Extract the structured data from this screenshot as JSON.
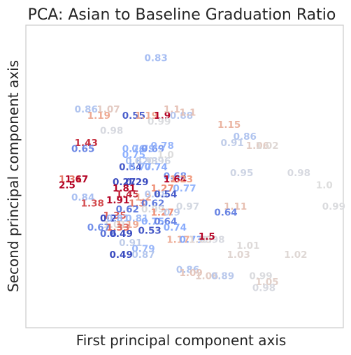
{
  "chart_data": {
    "type": "scatter",
    "title": "PCA: Asian to Baseline Graduation Ratio",
    "xlabel": "First principal component axis",
    "ylabel": "Second principal component axis",
    "xlim": [
      0,
      100
    ],
    "ylim": [
      0,
      100
    ],
    "grid": false,
    "colormap": "coolwarm",
    "color_range": [
      0.5,
      1.5
    ],
    "points": [
      {
        "x": 41,
        "y": 89,
        "label": "0.83"
      },
      {
        "x": 19,
        "y": 72,
        "label": "0.86"
      },
      {
        "x": 26,
        "y": 72,
        "label": "1.07"
      },
      {
        "x": 23,
        "y": 70,
        "label": "1.19"
      },
      {
        "x": 34,
        "y": 70,
        "label": "0.55"
      },
      {
        "x": 38,
        "y": 70,
        "label": "1.19"
      },
      {
        "x": 43,
        "y": 70,
        "label": "1.9"
      },
      {
        "x": 42,
        "y": 68,
        "label": "0.99"
      },
      {
        "x": 46,
        "y": 72,
        "label": "1.1"
      },
      {
        "x": 49,
        "y": 70,
        "label": "0.88"
      },
      {
        "x": 51,
        "y": 71,
        "label": "1.1"
      },
      {
        "x": 27,
        "y": 65,
        "label": "0.98"
      },
      {
        "x": 64,
        "y": 67,
        "label": "1.15"
      },
      {
        "x": 69,
        "y": 63,
        "label": "0.86"
      },
      {
        "x": 65,
        "y": 61,
        "label": "0.91"
      },
      {
        "x": 73,
        "y": 60,
        "label": "1.06"
      },
      {
        "x": 76,
        "y": 60,
        "label": "1.02"
      },
      {
        "x": 19,
        "y": 61,
        "label": "1.43"
      },
      {
        "x": 18,
        "y": 59,
        "label": "0.65"
      },
      {
        "x": 34,
        "y": 59,
        "label": "0.76"
      },
      {
        "x": 37,
        "y": 59,
        "label": "0.79"
      },
      {
        "x": 40,
        "y": 59,
        "label": "0.69"
      },
      {
        "x": 43,
        "y": 60,
        "label": "0.78"
      },
      {
        "x": 34,
        "y": 57,
        "label": "0.75"
      },
      {
        "x": 44,
        "y": 57,
        "label": "1.0"
      },
      {
        "x": 35,
        "y": 55,
        "label": "0.82"
      },
      {
        "x": 38,
        "y": 55,
        "label": "0.93"
      },
      {
        "x": 42,
        "y": 55,
        "label": "0.96"
      },
      {
        "x": 33,
        "y": 53,
        "label": "0.54"
      },
      {
        "x": 36,
        "y": 53,
        "label": "0.77"
      },
      {
        "x": 41,
        "y": 53,
        "label": "0.74"
      },
      {
        "x": 68,
        "y": 51,
        "label": "0.95"
      },
      {
        "x": 86,
        "y": 51,
        "label": "0.98"
      },
      {
        "x": 14,
        "y": 49,
        "label": "1.31"
      },
      {
        "x": 16,
        "y": 49,
        "label": "1.67"
      },
      {
        "x": 13,
        "y": 47,
        "label": "2.5"
      },
      {
        "x": 31,
        "y": 48,
        "label": "0.27"
      },
      {
        "x": 35,
        "y": 48,
        "label": "0.29"
      },
      {
        "x": 47,
        "y": 50,
        "label": "0.68"
      },
      {
        "x": 47,
        "y": 49,
        "label": "1.64"
      },
      {
        "x": 49,
        "y": 49,
        "label": "1.23"
      },
      {
        "x": 94,
        "y": 47,
        "label": "1.0"
      },
      {
        "x": 31,
        "y": 46,
        "label": "1.81"
      },
      {
        "x": 43,
        "y": 46,
        "label": "1.27"
      },
      {
        "x": 50,
        "y": 46,
        "label": "0.77"
      },
      {
        "x": 32,
        "y": 44,
        "label": "1.45"
      },
      {
        "x": 37,
        "y": 43,
        "label": "1.2"
      },
      {
        "x": 41,
        "y": 44,
        "label": "0.88"
      },
      {
        "x": 44,
        "y": 44,
        "label": "0.54"
      },
      {
        "x": 18,
        "y": 43,
        "label": "0.84"
      },
      {
        "x": 21,
        "y": 41,
        "label": "1.38"
      },
      {
        "x": 29,
        "y": 42,
        "label": "1.91"
      },
      {
        "x": 35,
        "y": 41,
        "label": "1.3"
      },
      {
        "x": 40,
        "y": 41,
        "label": "0.62"
      },
      {
        "x": 51,
        "y": 40,
        "label": "0.97"
      },
      {
        "x": 66,
        "y": 40,
        "label": "1.11"
      },
      {
        "x": 97,
        "y": 40,
        "label": "0.99"
      },
      {
        "x": 32,
        "y": 39,
        "label": "0.62"
      },
      {
        "x": 40,
        "y": 39,
        "label": "0.99"
      },
      {
        "x": 43,
        "y": 38,
        "label": "1.27"
      },
      {
        "x": 46,
        "y": 38,
        "label": "0.9"
      },
      {
        "x": 63,
        "y": 38,
        "label": "0.64"
      },
      {
        "x": 28,
        "y": 37,
        "label": "1.35"
      },
      {
        "x": 26,
        "y": 36,
        "label": "0.2"
      },
      {
        "x": 29,
        "y": 36,
        "label": "0.81"
      },
      {
        "x": 35,
        "y": 36,
        "label": "0.81"
      },
      {
        "x": 28,
        "y": 34,
        "label": "1.01"
      },
      {
        "x": 32,
        "y": 34,
        "label": "1.19"
      },
      {
        "x": 40,
        "y": 35,
        "label": "0.75"
      },
      {
        "x": 44,
        "y": 35,
        "label": "0.64"
      },
      {
        "x": 23,
        "y": 33,
        "label": "0.67"
      },
      {
        "x": 29,
        "y": 33,
        "label": "1.33"
      },
      {
        "x": 47,
        "y": 33,
        "label": "0.74"
      },
      {
        "x": 26,
        "y": 31,
        "label": "0.6"
      },
      {
        "x": 30,
        "y": 31,
        "label": "0.49"
      },
      {
        "x": 39,
        "y": 32,
        "label": "0.53"
      },
      {
        "x": 48,
        "y": 29,
        "label": "1.17"
      },
      {
        "x": 52,
        "y": 29,
        "label": "0.73"
      },
      {
        "x": 55,
        "y": 29,
        "label": "1.03"
      },
      {
        "x": 59,
        "y": 29,
        "label": "0.98"
      },
      {
        "x": 57,
        "y": 30,
        "label": "1.5"
      },
      {
        "x": 33,
        "y": 28,
        "label": "0.91"
      },
      {
        "x": 70,
        "y": 27,
        "label": "1.01"
      },
      {
        "x": 37,
        "y": 26,
        "label": "0.79"
      },
      {
        "x": 30,
        "y": 24,
        "label": "0.49"
      },
      {
        "x": 37,
        "y": 24,
        "label": "0.87"
      },
      {
        "x": 67,
        "y": 24,
        "label": "1.03"
      },
      {
        "x": 85,
        "y": 24,
        "label": "1.02"
      },
      {
        "x": 51,
        "y": 19,
        "label": "0.86"
      },
      {
        "x": 52,
        "y": 18,
        "label": "1.09"
      },
      {
        "x": 57,
        "y": 17,
        "label": "1.06"
      },
      {
        "x": 62,
        "y": 17,
        "label": "0.89"
      },
      {
        "x": 74,
        "y": 17,
        "label": "0.99"
      },
      {
        "x": 76,
        "y": 15,
        "label": "1.05"
      },
      {
        "x": 75,
        "y": 13,
        "label": "0.98"
      }
    ]
  }
}
